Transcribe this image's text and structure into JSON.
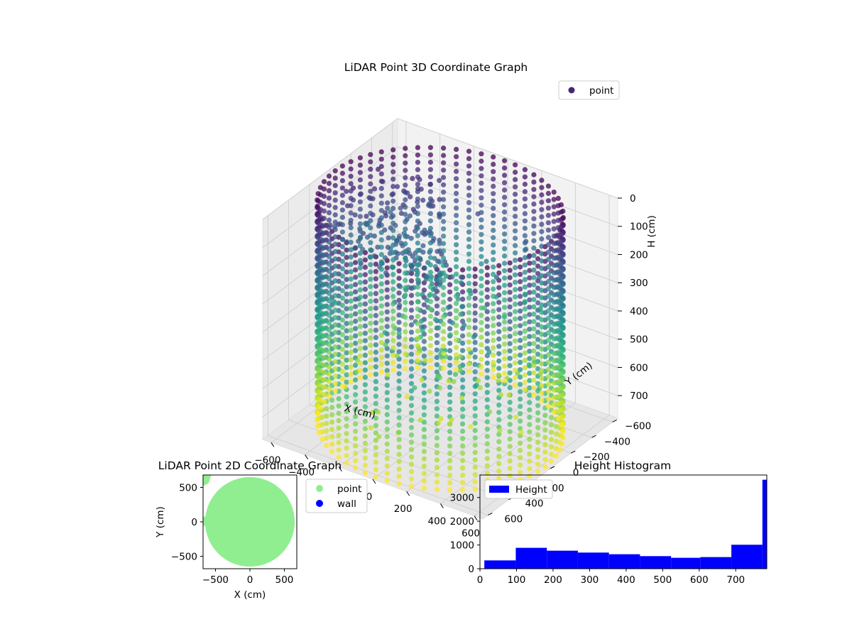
{
  "chart_data": [
    {
      "type": "scatter3d",
      "title": "LiDAR Point 3D Coordinate Graph",
      "xlabel": "X (cm)",
      "ylabel": "Y (cm)",
      "zlabel": "H (cm)",
      "xticks": [
        -600,
        -400,
        -200,
        0,
        200,
        400,
        600
      ],
      "yticks": [
        -600,
        -400,
        -200,
        0,
        200,
        400,
        600
      ],
      "zticks": [
        0,
        100,
        200,
        300,
        400,
        500,
        600,
        700
      ],
      "xlim": [
        -650,
        650
      ],
      "ylim": [
        -650,
        650
      ],
      "zlim": [
        0,
        780
      ],
      "z_inverted": true,
      "colormap": "viridis",
      "legend": {
        "position": "top-right",
        "entries": [
          {
            "name": "point",
            "color": "#482475"
          }
        ]
      },
      "shape": {
        "ring_radius": 620,
        "ring_height_range": [
          0,
          780
        ],
        "column_count": 60
      }
    },
    {
      "type": "scatter",
      "title": "LiDAR Point 2D Coordinate Graph",
      "xlabel": "X (cm)",
      "ylabel": "Y (cm)",
      "xticks": [
        -500,
        0,
        500
      ],
      "yticks": [
        -500,
        0,
        500
      ],
      "xlim": [
        -680,
        680
      ],
      "ylim": [
        -680,
        680
      ],
      "legend": {
        "position": "outside-right",
        "entries": [
          {
            "name": "point",
            "color": "#90ee90"
          },
          {
            "name": "wall",
            "color": "#0000ff"
          }
        ]
      },
      "disc_radius": 650
    },
    {
      "type": "histogram",
      "title": "Height Histogram",
      "xticks": [
        0,
        100,
        200,
        300,
        400,
        500,
        600,
        700
      ],
      "yticks": [
        0,
        1000,
        2000,
        3000
      ],
      "xlim": [
        0,
        785
      ],
      "ylim": [
        0,
        3950
      ],
      "color": "#0000ff",
      "legend": {
        "position": "top-left",
        "entries": [
          {
            "name": "Height",
            "color": "#0000ff"
          }
        ]
      },
      "bins": [
        {
          "x0": 12,
          "x1": 98,
          "value": 350
        },
        {
          "x0": 98,
          "x1": 183,
          "value": 880
        },
        {
          "x0": 183,
          "x1": 268,
          "value": 760
        },
        {
          "x0": 268,
          "x1": 353,
          "value": 680
        },
        {
          "x0": 353,
          "x1": 438,
          "value": 610
        },
        {
          "x0": 438,
          "x1": 523,
          "value": 530
        },
        {
          "x0": 523,
          "x1": 603,
          "value": 460
        },
        {
          "x0": 603,
          "x1": 688,
          "value": 490
        },
        {
          "x0": 688,
          "x1": 773,
          "value": 1010
        },
        {
          "x0": 773,
          "x1": 785,
          "value": 3750
        }
      ]
    }
  ]
}
